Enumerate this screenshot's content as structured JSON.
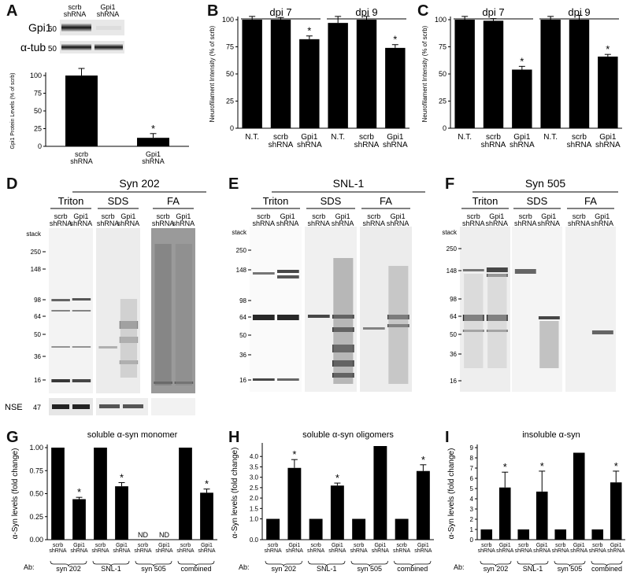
{
  "panel_letters": [
    "A",
    "B",
    "C",
    "D",
    "E",
    "F",
    "G",
    "H",
    "I"
  ],
  "panel_a": {
    "blot_rows": [
      {
        "label": "Gpi1",
        "mw": "60"
      },
      {
        "label": "α-tub",
        "mw": "50"
      }
    ],
    "blot_lanes": [
      "scrb\nshRNA",
      "Gpi1\nshRNA"
    ]
  },
  "panel_d": {
    "antibody": "Syn 202",
    "fractions": [
      "Triton",
      "SDS",
      "FA"
    ],
    "lanes": [
      "scrb\nshRNA",
      "Gpi1\nshRNA"
    ],
    "stack": "stack",
    "mw": [
      "250",
      "148",
      "98",
      "64",
      "50",
      "36",
      "16"
    ],
    "loading": {
      "label": "NSE",
      "mw": "47"
    }
  },
  "panel_e": {
    "antibody": "SNL-1",
    "fractions": [
      "Triton",
      "SDS",
      "FA"
    ],
    "lanes": [
      "scrb\nshRNA",
      "Gpi1\nshRNA"
    ],
    "stack": "stack",
    "mw": [
      "250",
      "148",
      "98",
      "64",
      "50",
      "36",
      "16"
    ]
  },
  "panel_f": {
    "antibody": "Syn 505",
    "fractions": [
      "Triton",
      "SDS",
      "FA"
    ],
    "lanes": [
      "scrb\nshRNA",
      "Gpi1\nshRNA"
    ],
    "stack": "stack",
    "mw": [
      "250",
      "148",
      "98",
      "64",
      "50",
      "36",
      "16"
    ]
  },
  "chart_data": [
    {
      "panel": "A",
      "type": "bar",
      "categories": [
        "scrb\nshRNA",
        "Gpi1\nshRNA"
      ],
      "values": [
        100,
        12
      ],
      "errors": [
        10,
        6
      ],
      "significance": [
        false,
        true
      ],
      "ylabel": "Gpi1 Protein Levels (% of scrb)",
      "ylim": [
        0,
        100
      ],
      "yticks": [
        0,
        25,
        50,
        75,
        100
      ]
    },
    {
      "panel": "B",
      "type": "bar",
      "groups": [
        "dpi 7",
        "dpi 9"
      ],
      "categories": [
        "N.T.",
        "scrb\nshRNA",
        "Gpi1\nshRNA",
        "N.T.",
        "scrb\nshRNA",
        "Gpi1\nshRNA"
      ],
      "values": [
        100,
        100,
        82,
        97,
        100,
        74
      ],
      "errors": [
        3,
        2,
        3,
        6,
        3,
        3
      ],
      "significance": [
        false,
        false,
        true,
        false,
        false,
        true
      ],
      "ylabel": "Neurofilament Intensity (% of scrb)",
      "ylim": [
        0,
        100
      ],
      "yticks": [
        0,
        25,
        50,
        75,
        100
      ]
    },
    {
      "panel": "C",
      "type": "bar",
      "groups": [
        "dpi 7",
        "dpi 9"
      ],
      "categories": [
        "N.T.",
        "scrb\nshRNA",
        "Gpi1\nshRNA",
        "N.T.",
        "scrb\nshRNA",
        "Gpi1\nshRNA"
      ],
      "values": [
        100,
        99,
        54,
        100,
        100,
        66
      ],
      "errors": [
        3,
        2,
        3,
        3,
        4,
        2
      ],
      "significance": [
        false,
        false,
        true,
        false,
        false,
        true
      ],
      "ylabel": "Neurofilament Intensity (% of scrb)",
      "ylim": [
        0,
        100
      ],
      "yticks": [
        0,
        25,
        50,
        75,
        100
      ]
    },
    {
      "panel": "G",
      "type": "bar",
      "title": "soluble α-syn monomer",
      "categories": [
        "scrb\nshRNA",
        "Gpi1\nshRNA",
        "scrb\nshRNA",
        "Gpi1\nshRNA",
        "scrb\nshRNA",
        "Gpi1\nshRNA",
        "scrb\nshRNA",
        "Gpi1\nshRNA"
      ],
      "values": [
        1.0,
        0.44,
        1.0,
        0.58,
        null,
        null,
        1.0,
        0.51
      ],
      "errors": [
        0,
        0.02,
        0,
        0.04,
        0,
        0,
        0,
        0.04
      ],
      "significance": [
        false,
        true,
        false,
        true,
        false,
        false,
        false,
        true
      ],
      "bar_text": [
        "",
        "",
        "",
        "",
        "ND",
        "ND",
        "",
        ""
      ],
      "ylabel": "α-Syn levels (fold change)",
      "ylim": [
        0,
        1.0
      ],
      "yticks": [
        "0.00",
        "0.25",
        "0.50",
        "0.75",
        "1.00"
      ],
      "ab_label": "Ab:",
      "ab_groups": [
        "syn 202",
        "SNL-1",
        "syn 505",
        "combined"
      ]
    },
    {
      "panel": "H",
      "type": "bar",
      "title": "soluble α-syn oligomers",
      "categories": [
        "scrb\nshRNA",
        "Gpi1\nshRNA",
        "scrb\nshRNA",
        "Gpi1\nshRNA",
        "scrb\nshRNA",
        "Gpi1\nshRNA",
        "scrb\nshRNA",
        "Gpi1\nshRNA"
      ],
      "values": [
        1.0,
        3.45,
        1.0,
        2.6,
        1.0,
        4.5,
        1.0,
        3.3
      ],
      "errors": [
        0,
        0.4,
        0,
        0.12,
        0,
        0,
        0,
        0.3
      ],
      "significance": [
        false,
        true,
        false,
        true,
        false,
        false,
        false,
        true
      ],
      "ylabel": "α-Syn levels (fold change)",
      "ylim": [
        0,
        4.5
      ],
      "yticks": [
        "0.0",
        "1.0",
        "1.5",
        "2.0",
        "2.5",
        "3.0",
        "3.5",
        "4.0"
      ],
      "ytick_values": [
        0,
        1.0,
        1.5,
        2.0,
        2.5,
        3.0,
        3.5,
        4.0
      ],
      "ab_label": "Ab:",
      "ab_groups": [
        "syn 202",
        "SNL-1",
        "syn 505",
        "combined"
      ]
    },
    {
      "panel": "I",
      "type": "bar",
      "title": "insoluble α-syn",
      "categories": [
        "scrb\nshRNA",
        "Gpi1\nshRNA",
        "scrb\nshRNA",
        "Gpi1\nshRNA",
        "scrb\nshRNA",
        "Gpi1\nshRNA",
        "scrb\nshRNA",
        "Gpi1\nshRNA"
      ],
      "values": [
        1.0,
        5.1,
        1.0,
        4.7,
        1.0,
        8.5,
        1.0,
        5.6
      ],
      "errors": [
        0,
        1.5,
        0,
        2.0,
        0,
        0,
        0,
        1.1
      ],
      "significance": [
        false,
        true,
        false,
        true,
        false,
        false,
        false,
        true
      ],
      "ylabel": "α-Syn levels (fold change)",
      "ylim": [
        0,
        9
      ],
      "yticks": [
        "0",
        "1",
        "2",
        "3",
        "4",
        "5",
        "6",
        "7",
        "8",
        "9"
      ],
      "ytick_values": [
        0,
        1,
        2,
        3,
        4,
        5,
        6,
        7,
        8,
        9
      ],
      "ab_label": "Ab:",
      "ab_groups": [
        "syn 202",
        "SNL-1",
        "syn 505",
        "combined"
      ]
    }
  ]
}
